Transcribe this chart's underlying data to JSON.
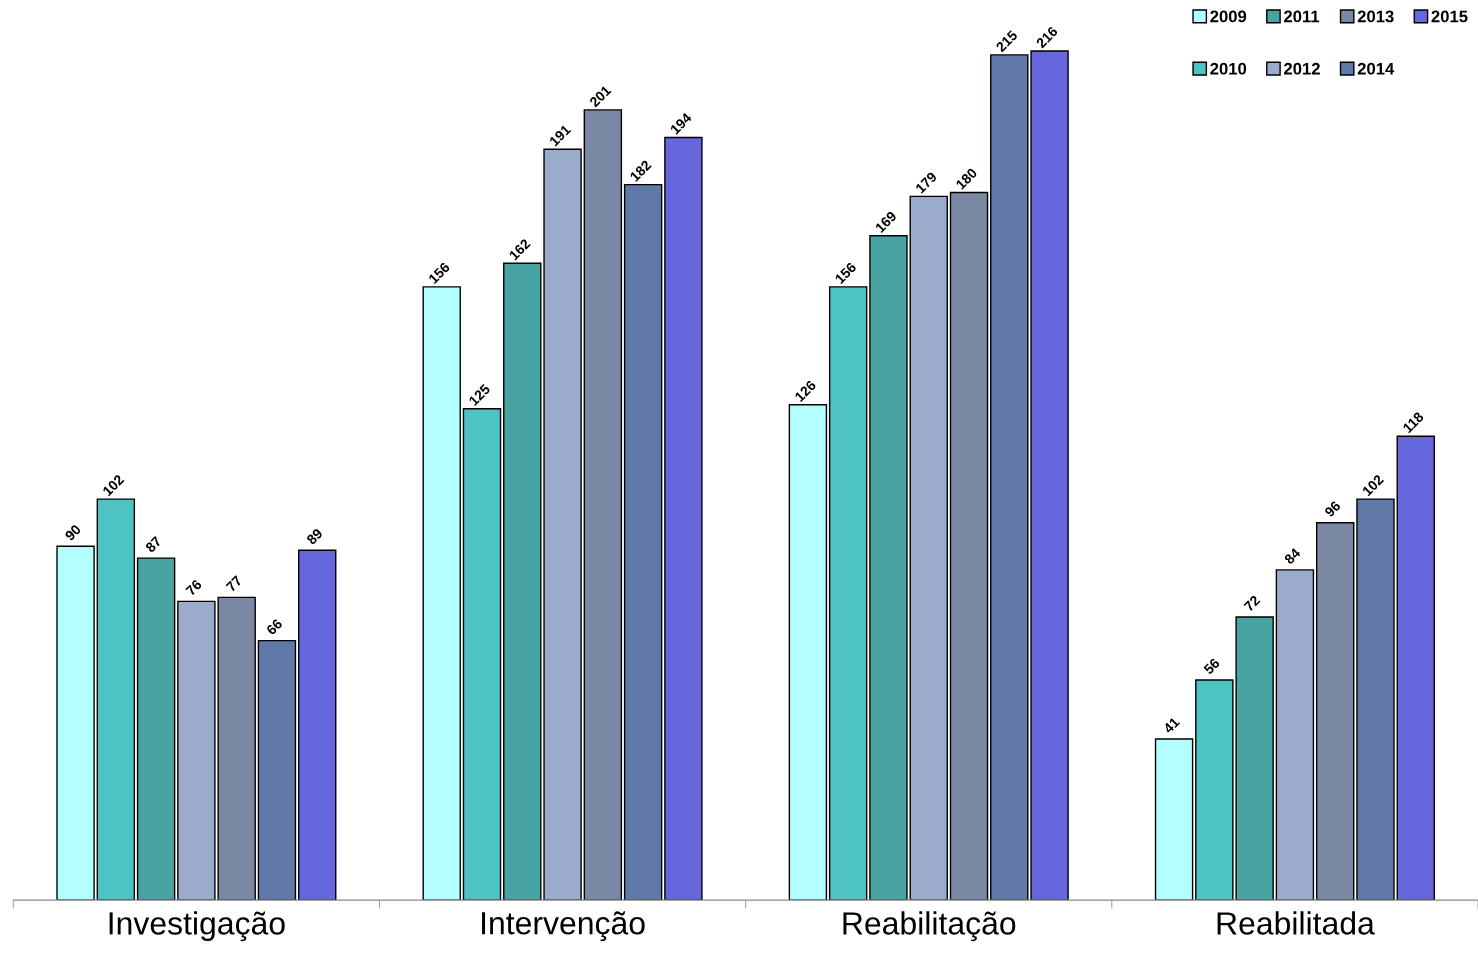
{
  "chart_data": {
    "type": "bar",
    "categories": [
      "Investigação",
      "Intervenção",
      "Reabilitação",
      "Reabilitada"
    ],
    "series": [
      {
        "name": "2009",
        "color": "#b3ffff",
        "values": [
          90,
          156,
          126,
          41
        ]
      },
      {
        "name": "2010",
        "color": "#4dc3c3",
        "values": [
          102,
          125,
          156,
          56
        ]
      },
      {
        "name": "2011",
        "color": "#48a3a3",
        "values": [
          87,
          162,
          169,
          72
        ]
      },
      {
        "name": "2012",
        "color": "#9aabcb",
        "values": [
          76,
          191,
          179,
          84
        ]
      },
      {
        "name": "2013",
        "color": "#7a88a4",
        "values": [
          77,
          201,
          180,
          96
        ]
      },
      {
        "name": "2014",
        "color": "#6179a8",
        "values": [
          66,
          182,
          215,
          102
        ]
      },
      {
        "name": "2015",
        "color": "#6666dd",
        "values": [
          89,
          194,
          216,
          118
        ]
      }
    ],
    "data_labels": true,
    "legend": "top right",
    "grid": false,
    "tick_labels": "x"
  }
}
